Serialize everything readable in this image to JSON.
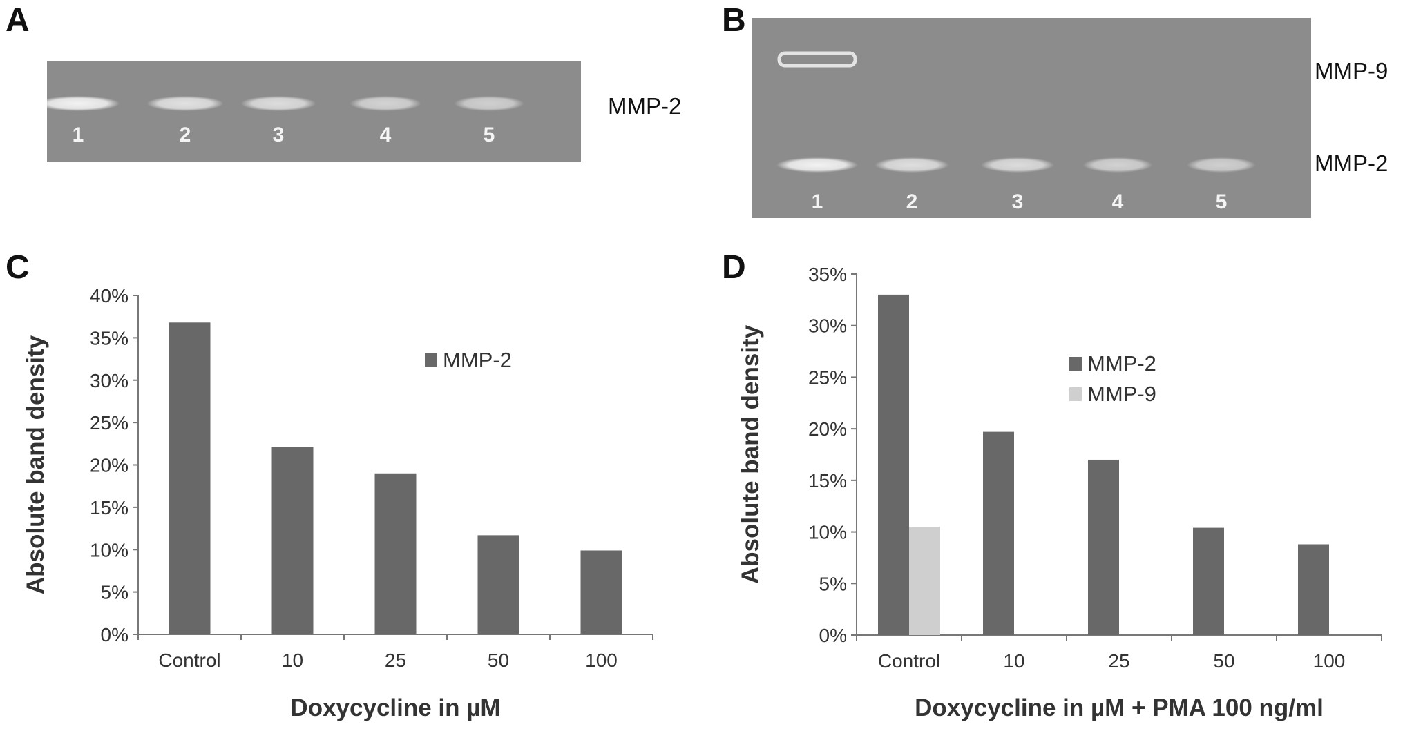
{
  "panels": {
    "a": {
      "letter": "A",
      "gel_label": "MMP-2",
      "lanes": [
        "1",
        "2",
        "3",
        "4",
        "5"
      ],
      "band_intensity": [
        1.0,
        0.7,
        0.62,
        0.45,
        0.38
      ]
    },
    "b": {
      "letter": "B",
      "gel_labels": {
        "mmp9": "MMP-9",
        "mmp2": "MMP-2"
      },
      "lanes": [
        "1",
        "2",
        "3",
        "4",
        "5"
      ],
      "band_intensity_mmp2": [
        1.0,
        0.65,
        0.6,
        0.42,
        0.38
      ],
      "band_intensity_mmp9": [
        0.85,
        0,
        0,
        0,
        0
      ]
    },
    "c": {
      "letter": "C"
    },
    "d": {
      "letter": "D"
    }
  },
  "colors": {
    "gel_background": "#8c8c8c",
    "band": "#f2f2f2",
    "mmp2": "#686868",
    "mmp9": "#cfcfcf",
    "axis": "#777777"
  },
  "chart_data": [
    {
      "panel": "C",
      "type": "bar",
      "categories": [
        "Control",
        "10",
        "25",
        "50",
        "100"
      ],
      "series": [
        {
          "name": "MMP-2",
          "values": [
            36.8,
            22.1,
            19.0,
            11.7,
            9.9
          ]
        }
      ],
      "xlabel": "Doxycycline in µM",
      "ylabel": "Absolute band density",
      "ylim": [
        0,
        40
      ],
      "yticks": [
        "0%",
        "5%",
        "10%",
        "15%",
        "20%",
        "25%",
        "30%",
        "35%",
        "40%"
      ],
      "grid": false,
      "legend": "top-right"
    },
    {
      "panel": "D",
      "type": "bar",
      "categories": [
        "Control",
        "10",
        "25",
        "50",
        "100"
      ],
      "series": [
        {
          "name": "MMP-2",
          "values": [
            33.0,
            19.7,
            17.0,
            10.4,
            8.8
          ]
        },
        {
          "name": "MMP-9",
          "values": [
            10.5,
            0,
            0,
            0,
            0
          ]
        }
      ],
      "xlabel": "Doxycycline in µM + PMA 100 ng/ml",
      "ylabel": "Absolute band density",
      "ylim": [
        0,
        35
      ],
      "yticks": [
        "0%",
        "5%",
        "10%",
        "15%",
        "20%",
        "25%",
        "30%",
        "35%"
      ],
      "grid": false,
      "legend": "top-right"
    }
  ]
}
